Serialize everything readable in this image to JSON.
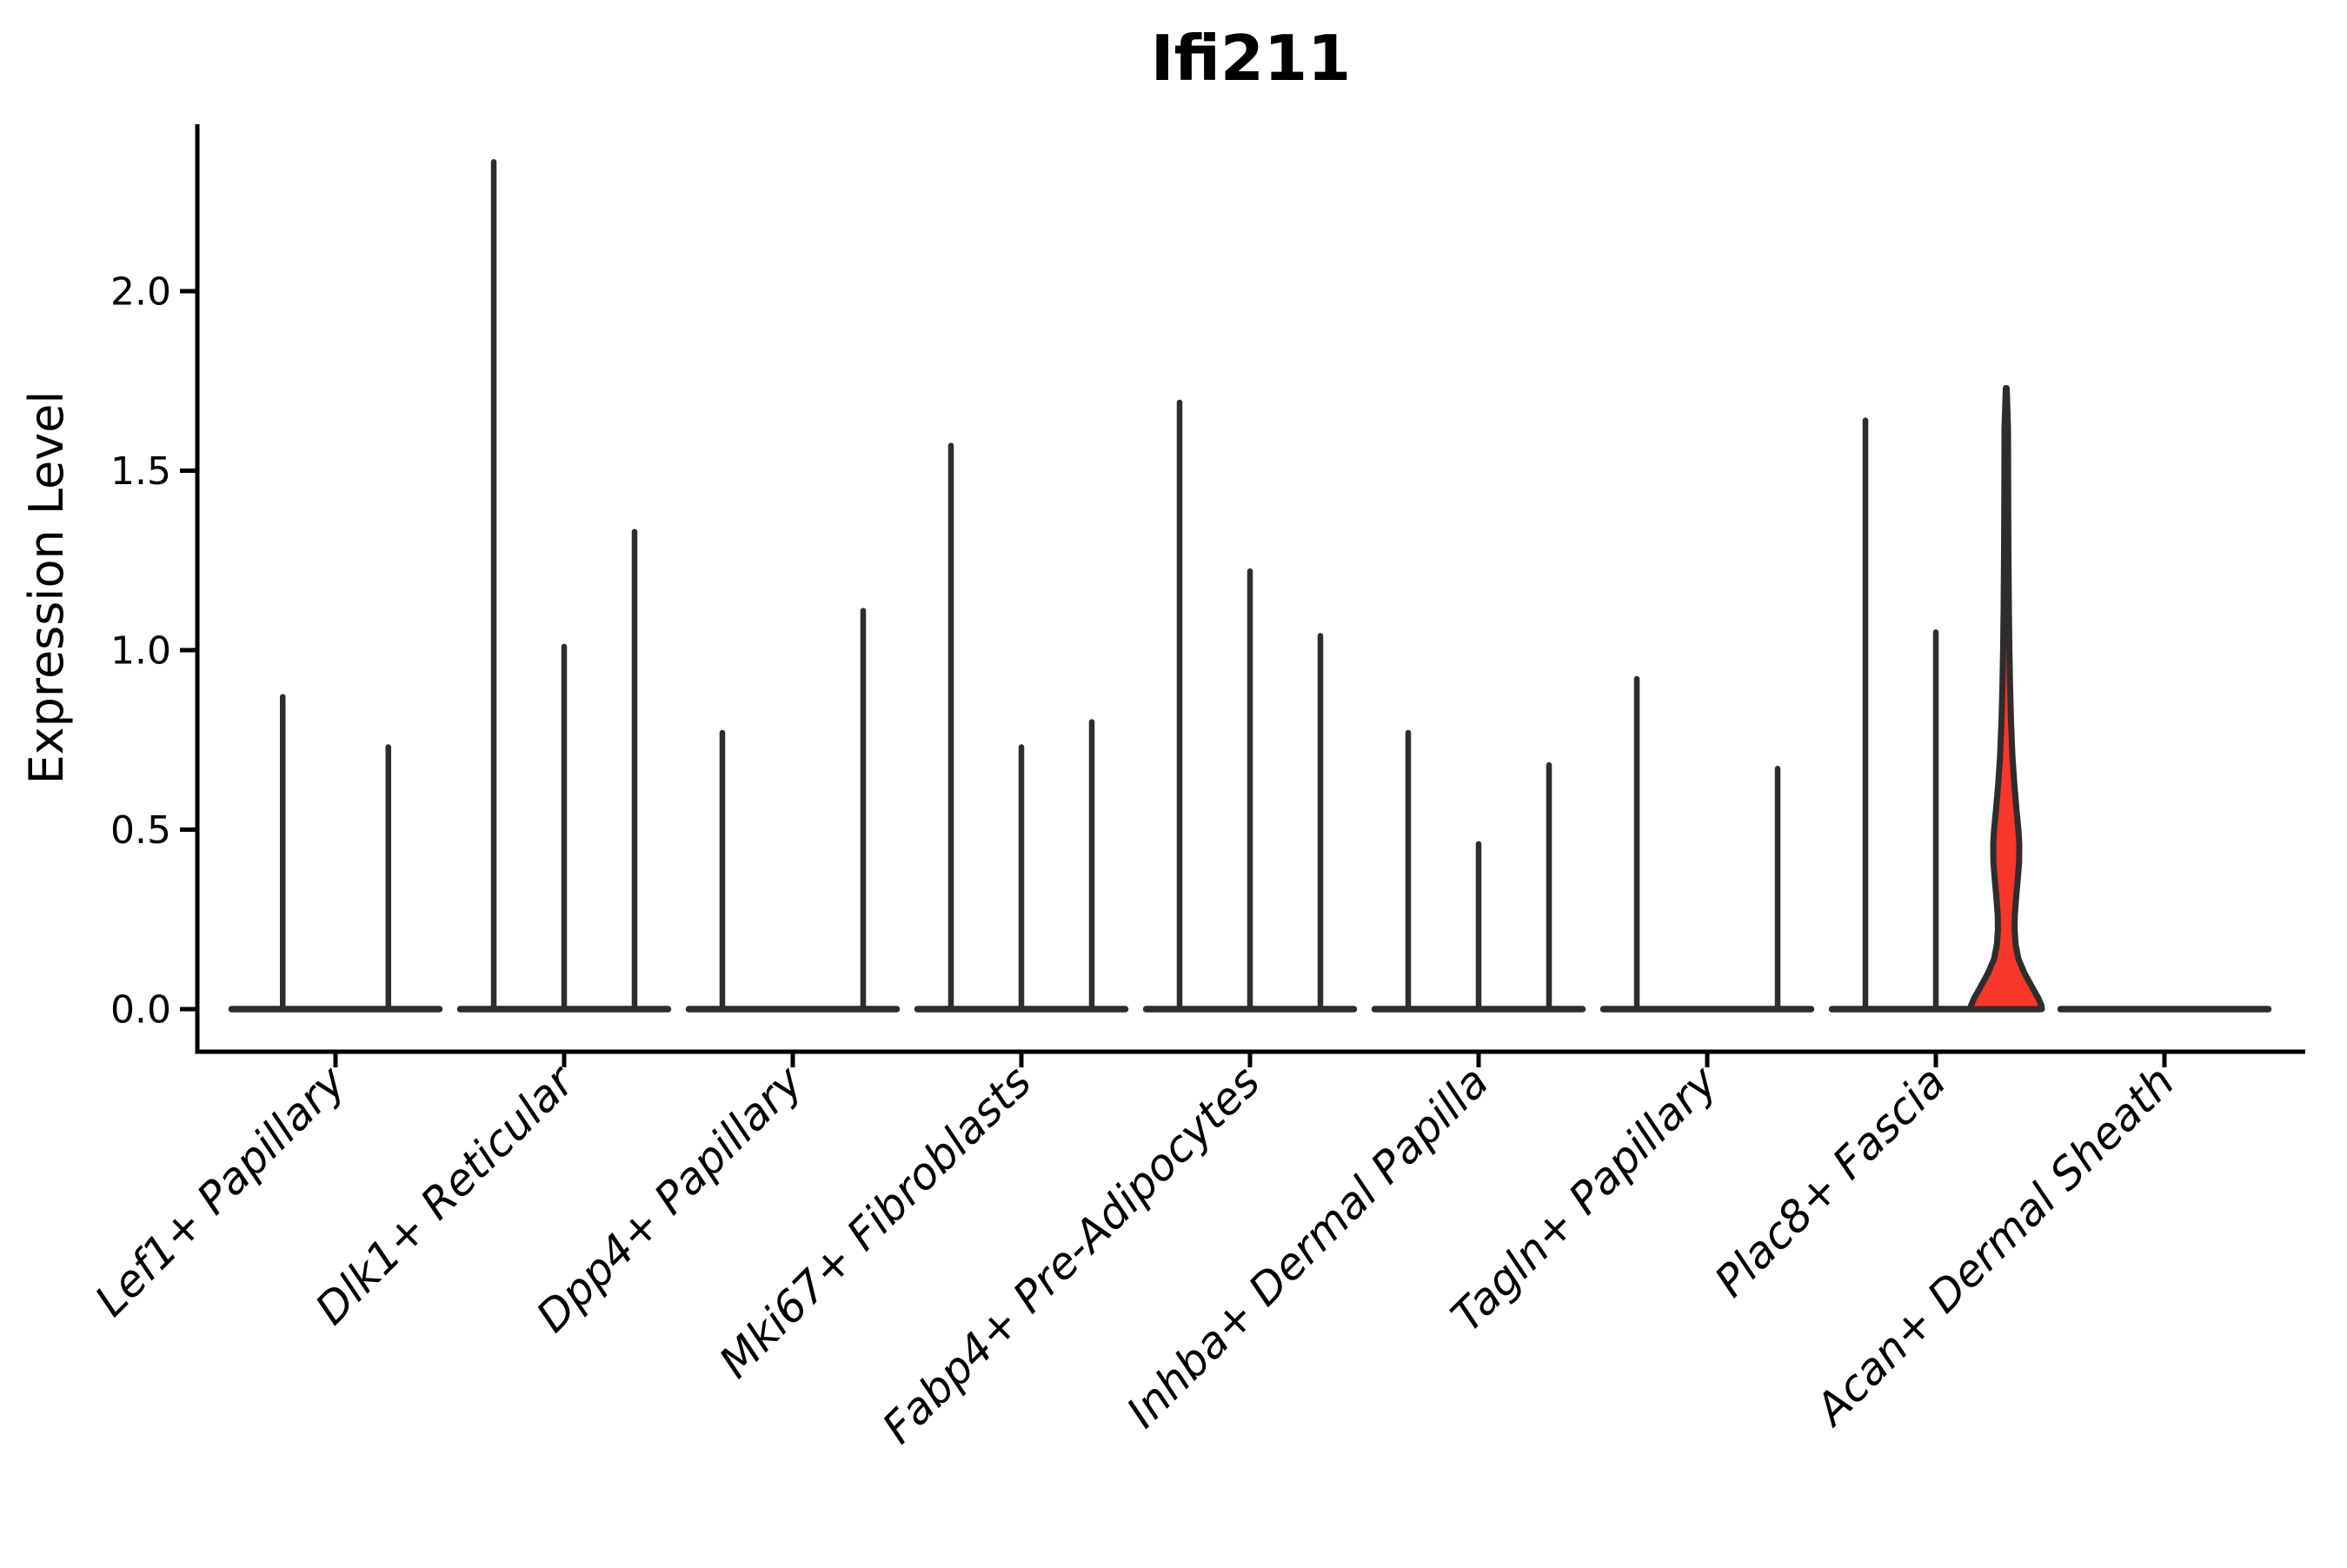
{
  "title": "Ifi211",
  "chart_data": {
    "type": "violin",
    "title": "Ifi211",
    "xlabel": "",
    "ylabel": "Expression Level",
    "grid": false,
    "legend": null,
    "background": "#ffffff",
    "ylim": [
      -0.12,
      2.47
    ],
    "ytick_labels": [
      "0.0",
      "0.5",
      "1.0",
      "1.5",
      "2.0"
    ],
    "ytick_values": [
      0.0,
      0.5,
      1.0,
      1.5,
      2.0
    ],
    "line_color": "#2d2d2d",
    "highlight_fill": "#f8362a",
    "categories": [
      {
        "label": "Lef1+ Papillary",
        "peaks": [
          0.87,
          0.73
        ]
      },
      {
        "label": "Dlk1+ Reticular",
        "peaks": [
          2.36,
          1.01,
          1.33
        ]
      },
      {
        "label": "Dpp4+ Papillary",
        "peaks": [
          0.77,
          0.0,
          1.11
        ]
      },
      {
        "label": "Mki67+ Fibroblasts",
        "peaks": [
          1.57,
          0.73,
          0.8
        ]
      },
      {
        "label": "Fabp4+ Pre-Adipocytes",
        "peaks": [
          1.69,
          1.22,
          1.04
        ]
      },
      {
        "label": "Inhba+ Dermal Papilla",
        "peaks": [
          0.77,
          0.46,
          0.68
        ]
      },
      {
        "label": "Tagln+ Papillary",
        "peaks": [
          0.92,
          0.0,
          0.67
        ]
      },
      {
        "label": "Plac8+ Fascia",
        "peaks": [
          1.64,
          1.05,
          1.73
        ]
      },
      {
        "label": "Acan+ Dermal Sheath",
        "peaks": [
          0.0
        ]
      }
    ],
    "filled_violin": {
      "category_index": 7,
      "violin_index": 2,
      "peak": 1.73,
      "fill": "#f8362a",
      "profile": [
        [
          1.73,
          0.5
        ],
        [
          1.62,
          2.0
        ],
        [
          1.45,
          2.2
        ],
        [
          1.28,
          2.5
        ],
        [
          1.12,
          3.0
        ],
        [
          1.0,
          3.6
        ],
        [
          0.9,
          4.4
        ],
        [
          0.8,
          5.5
        ],
        [
          0.7,
          7.2
        ],
        [
          0.62,
          9.5
        ],
        [
          0.55,
          12.0
        ],
        [
          0.5,
          14.0
        ],
        [
          0.46,
          15.0
        ],
        [
          0.41,
          14.8
        ],
        [
          0.36,
          13.2
        ],
        [
          0.31,
          11.3
        ],
        [
          0.26,
          9.8
        ],
        [
          0.22,
          9.6
        ],
        [
          0.18,
          10.8
        ],
        [
          0.14,
          14.0
        ],
        [
          0.1,
          21.0
        ],
        [
          0.06,
          30.0
        ],
        [
          0.03,
          37.0
        ],
        [
          0.01,
          40.5
        ],
        [
          0.0,
          41.0
        ]
      ]
    }
  }
}
